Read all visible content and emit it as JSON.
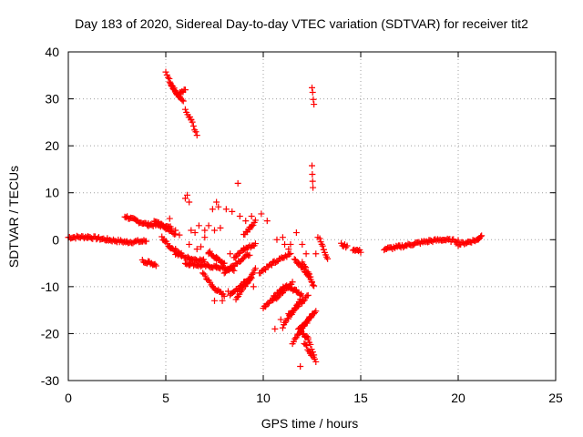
{
  "chart_data": {
    "type": "scatter",
    "title": "Day 183 of 2020, Sidereal Day-to-day VTEC variation (SDTVAR) for receiver tit2",
    "xlabel": "GPS time / hours",
    "ylabel": "SDTVAR / TECUs",
    "xlim": [
      0,
      25
    ],
    "ylim": [
      -30,
      40
    ],
    "xticks": [
      0,
      5,
      10,
      15,
      20,
      25
    ],
    "yticks": [
      -30,
      -20,
      -10,
      0,
      10,
      20,
      30,
      40
    ],
    "grid": true,
    "marker": "+",
    "color": "#ff0000",
    "segments": [
      {
        "x": [
          0.0,
          1.0,
          2.0,
          3.0,
          4.0
        ],
        "y": [
          0.5,
          0.6,
          0.0,
          -0.5,
          -0.3
        ]
      },
      {
        "x": [
          2.9,
          3.5,
          4.1,
          4.8,
          5.3
        ],
        "y": [
          5.0,
          4.0,
          3.2,
          3.0,
          2.5
        ]
      },
      {
        "x": [
          3.8,
          4.1,
          4.5
        ],
        "y": [
          -4.5,
          -4.8,
          -5.3
        ]
      },
      {
        "x": [
          5.0,
          5.3,
          5.6,
          6.0
        ],
        "y": [
          35.8,
          33.0,
          31.0,
          31.8
        ]
      },
      {
        "x": [
          5.2,
          5.6,
          5.9
        ],
        "y": [
          33.5,
          31.0,
          29.5
        ]
      },
      {
        "x": [
          6.0,
          6.3,
          6.6
        ],
        "y": [
          27.5,
          25.5,
          22.0
        ]
      },
      {
        "x": [
          4.4,
          5.0,
          5.5
        ],
        "y": [
          4.0,
          2.5,
          1.0
        ]
      },
      {
        "x": [
          4.8,
          5.2,
          5.8
        ],
        "y": [
          0.5,
          -1.5,
          -3.0
        ]
      },
      {
        "x": [
          5.5,
          6.2,
          7.0
        ],
        "y": [
          -3.0,
          -4.0,
          -4.5
        ]
      },
      {
        "x": [
          6.0,
          6.8,
          7.6,
          8.5
        ],
        "y": [
          -5.0,
          -5.5,
          -5.8,
          -6.5
        ]
      },
      {
        "x": [
          6.9,
          7.4,
          8.0
        ],
        "y": [
          -7.0,
          -10.0,
          -12.0
        ]
      },
      {
        "x": [
          7.2,
          7.6,
          8.0
        ],
        "y": [
          -2.5,
          -4.0,
          -5.0
        ]
      },
      {
        "x": [
          8.0,
          8.6,
          9.3
        ],
        "y": [
          -7.0,
          -5.0,
          -3.0
        ]
      },
      {
        "x": [
          8.3,
          8.8,
          9.4
        ],
        "y": [
          -12.0,
          -10.0,
          -8.0
        ]
      },
      {
        "x": [
          8.6,
          9.2,
          9.6
        ],
        "y": [
          -12.5,
          -9.0,
          -6.0
        ]
      },
      {
        "x": [
          8.5,
          9.0,
          9.6
        ],
        "y": [
          -4.0,
          -2.0,
          -1.0
        ]
      },
      {
        "x": [
          9.0,
          9.3,
          9.6
        ],
        "y": [
          1.0,
          2.5,
          4.0
        ]
      },
      {
        "x": [
          9.8,
          10.5,
          11.4
        ],
        "y": [
          -7.0,
          -5.0,
          -3.0
        ]
      },
      {
        "x": [
          10.0,
          10.6,
          11.2
        ],
        "y": [
          -14.5,
          -12.0,
          -9.5
        ]
      },
      {
        "x": [
          10.5,
          11.0,
          11.5
        ],
        "y": [
          -13.0,
          -11.0,
          -9.0
        ]
      },
      {
        "x": [
          11.0,
          11.4,
          11.9
        ],
        "y": [
          -18.5,
          -16.0,
          -13.0
        ]
      },
      {
        "x": [
          11.3,
          11.8,
          12.3
        ],
        "y": [
          -16.0,
          -14.0,
          -12.0
        ]
      },
      {
        "x": [
          11.5,
          12.0,
          12.5
        ],
        "y": [
          -22.0,
          -19.0,
          -16.0
        ]
      },
      {
        "x": [
          11.8,
          12.3,
          12.7
        ],
        "y": [
          -19.0,
          -17.0,
          -15.0
        ]
      },
      {
        "x": [
          11.3,
          11.7,
          12.0
        ],
        "y": [
          -10.0,
          -11.0,
          -12.0
        ]
      },
      {
        "x": [
          11.6,
          12.0,
          12.5
        ],
        "y": [
          -4.0,
          -6.0,
          -9.0
        ]
      },
      {
        "x": [
          12.0,
          12.3,
          12.6
        ],
        "y": [
          -5.0,
          -7.0,
          -10.0
        ]
      },
      {
        "x": [
          12.1,
          12.4,
          12.7
        ],
        "y": [
          -22.0,
          -24.0,
          -26.0
        ]
      },
      {
        "x": [
          11.9,
          12.3,
          12.6
        ],
        "y": [
          -19.5,
          -21.0,
          -24.5
        ]
      },
      {
        "x": [
          12.9,
          13.1,
          13.3
        ],
        "y": [
          0.0,
          -2.0,
          -4.0
        ]
      },
      {
        "x": [
          12.5,
          12.6
        ],
        "y": [
          32.5,
          29.0
        ]
      },
      {
        "x": [
          12.5,
          12.55
        ],
        "y": [
          15.5,
          11.0
        ]
      },
      {
        "x": [
          14.0,
          14.3
        ],
        "y": [
          -1.0,
          -1.5
        ]
      },
      {
        "x": [
          14.6,
          15.0
        ],
        "y": [
          -2.0,
          -2.5
        ]
      },
      {
        "x": [
          16.2,
          17.0,
          17.8,
          18.5,
          19.2,
          20.0
        ],
        "y": [
          -2.0,
          -1.5,
          -0.8,
          -0.3,
          0.0,
          -0.3
        ]
      },
      {
        "x": [
          20.0,
          20.5,
          21.0,
          21.2
        ],
        "y": [
          -1.0,
          -0.5,
          0.0,
          1.0
        ]
      }
    ],
    "scatter_points": [
      {
        "x": 5.2,
        "y": 4.5
      },
      {
        "x": 5.5,
        "y": 2.0
      },
      {
        "x": 5.7,
        "y": 1.0
      },
      {
        "x": 6.0,
        "y": 8.8
      },
      {
        "x": 6.1,
        "y": 9.5
      },
      {
        "x": 6.2,
        "y": 8.0
      },
      {
        "x": 6.3,
        "y": 2.0
      },
      {
        "x": 6.5,
        "y": 1.5
      },
      {
        "x": 6.7,
        "y": 3.0
      },
      {
        "x": 6.8,
        "y": -1.5
      },
      {
        "x": 7.0,
        "y": 2.0
      },
      {
        "x": 7.2,
        "y": 3.0
      },
      {
        "x": 7.0,
        "y": 0.5
      },
      {
        "x": 7.4,
        "y": 6.5
      },
      {
        "x": 7.5,
        "y": 2.0
      },
      {
        "x": 7.6,
        "y": 8.0
      },
      {
        "x": 7.7,
        "y": 7.0
      },
      {
        "x": 7.8,
        "y": 2.5
      },
      {
        "x": 8.1,
        "y": 6.5
      },
      {
        "x": 8.4,
        "y": 6.0
      },
      {
        "x": 8.7,
        "y": 12.0
      },
      {
        "x": 8.8,
        "y": 5.0
      },
      {
        "x": 9.1,
        "y": 4.0
      },
      {
        "x": 9.4,
        "y": 5.0
      },
      {
        "x": 7.5,
        "y": -13.0
      },
      {
        "x": 7.9,
        "y": -13.0
      },
      {
        "x": 8.2,
        "y": -11.0
      },
      {
        "x": 9.0,
        "y": -9.0
      },
      {
        "x": 9.5,
        "y": -10.0
      },
      {
        "x": 6.2,
        "y": -1.0
      },
      {
        "x": 6.6,
        "y": -2.0
      },
      {
        "x": 7.2,
        "y": -3.0
      },
      {
        "x": 8.3,
        "y": -3.0
      },
      {
        "x": 9.9,
        "y": 5.5
      },
      {
        "x": 10.2,
        "y": 4.0
      },
      {
        "x": 10.7,
        "y": 0.0
      },
      {
        "x": 11.0,
        "y": 0.5
      },
      {
        "x": 11.1,
        "y": -1.0
      },
      {
        "x": 11.4,
        "y": -1.0
      },
      {
        "x": 11.7,
        "y": 1.5
      },
      {
        "x": 12.0,
        "y": -1.0
      },
      {
        "x": 12.2,
        "y": -3.0
      },
      {
        "x": 11.3,
        "y": -2.0
      },
      {
        "x": 11.9,
        "y": -27.0
      },
      {
        "x": 12.7,
        "y": -3.0
      },
      {
        "x": 12.8,
        "y": 0.5
      },
      {
        "x": 10.6,
        "y": -19.0
      },
      {
        "x": 10.9,
        "y": -17.0
      }
    ]
  }
}
